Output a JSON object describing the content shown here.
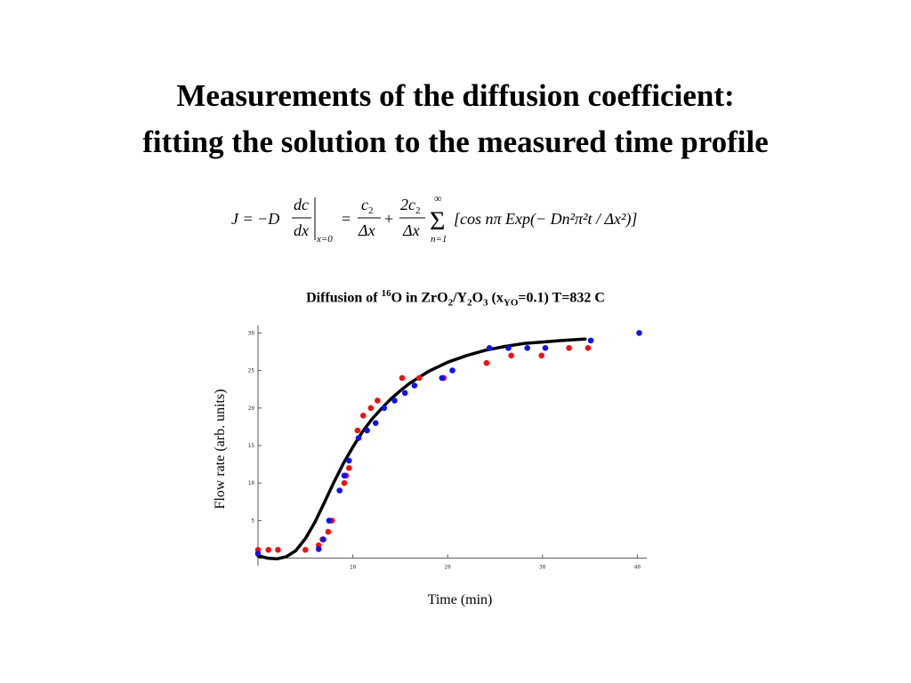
{
  "slide": {
    "title_line1": "Measurements of the diffusion coefficient:",
    "title_line2": "fitting the solution to the measured time profile"
  },
  "formula": {
    "lhs": "J = −D",
    "dc": "dc",
    "dx": "dx",
    "eval_at": "x=0",
    "eq": "=",
    "c2_num": "c",
    "c2_sub": "2",
    "dx1": "Δx",
    "plus": "+",
    "two_c2_num": "2c",
    "two_c2_sub": "2",
    "dx2": "Δx",
    "sum_top": "∞",
    "sum": "Σ",
    "sum_bottom": "n=1",
    "body": "[cos nπ Exp(− Dn²π²t / Δx²)]"
  },
  "chart_data": {
    "type": "scatter",
    "title_prefix": "Diffusion of ",
    "title_sup": "16",
    "title_main": "O in ZrO",
    "title_sub1": "2",
    "title_mid": "/Y",
    "title_sub2": "2",
    "title_mid2": "O",
    "title_sub3": "3",
    "title_mid3": " (x",
    "title_sub4": "YO",
    "title_end": "=0.1) T=832 C",
    "xlabel": "Time (min)",
    "ylabel": "Flow rate (arb. units)",
    "xlim": [
      0,
      41
    ],
    "ylim": [
      -1,
      31
    ],
    "x_ticks": [
      {
        "value": 10,
        "label": "10"
      },
      {
        "value": 20,
        "label": "20"
      },
      {
        "value": 30,
        "label": "30"
      },
      {
        "value": 40,
        "label": "40"
      }
    ],
    "y_ticks": [
      {
        "value": 5,
        "label": "5"
      },
      {
        "value": 10,
        "label": "10"
      },
      {
        "value": 15,
        "label": "15"
      },
      {
        "value": 20,
        "label": "20"
      },
      {
        "value": 25,
        "label": "25"
      },
      {
        "value": 30,
        "label": "30"
      }
    ],
    "series": [
      {
        "color": "#ee1111",
        "points": [
          [
            0.0,
            1.1
          ],
          [
            1.1,
            1.1
          ],
          [
            2.1,
            1.1
          ],
          [
            5.0,
            1.1
          ],
          [
            6.4,
            1.7
          ],
          [
            6.8,
            2.5
          ],
          [
            7.4,
            3.5
          ],
          [
            7.8,
            5.0
          ],
          [
            9.1,
            10.0
          ],
          [
            9.3,
            11.0
          ],
          [
            9.6,
            12.0
          ],
          [
            10.5,
            17.0
          ],
          [
            11.1,
            19.0
          ],
          [
            11.9,
            20.0
          ],
          [
            12.6,
            21.0
          ],
          [
            15.2,
            24.0
          ],
          [
            17.0,
            24.0
          ],
          [
            19.6,
            24.0
          ],
          [
            24.1,
            26.0
          ],
          [
            26.7,
            27.0
          ],
          [
            29.9,
            27.0
          ],
          [
            32.8,
            28.0
          ],
          [
            34.8,
            28.0
          ]
        ]
      },
      {
        "color": "#1111ee",
        "points": [
          [
            0.0,
            0.6
          ],
          [
            6.4,
            1.2
          ],
          [
            6.9,
            2.5
          ],
          [
            7.5,
            5.0
          ],
          [
            8.6,
            9.0
          ],
          [
            9.1,
            11.0
          ],
          [
            9.6,
            13.0
          ],
          [
            10.6,
            16.0
          ],
          [
            11.5,
            17.0
          ],
          [
            12.4,
            18.0
          ],
          [
            13.3,
            20.0
          ],
          [
            14.4,
            21.0
          ],
          [
            15.5,
            22.0
          ],
          [
            16.5,
            23.0
          ],
          [
            19.4,
            24.0
          ],
          [
            20.5,
            25.0
          ],
          [
            24.4,
            28.0
          ],
          [
            26.4,
            28.0
          ],
          [
            28.4,
            28.0
          ],
          [
            30.3,
            28.0
          ],
          [
            35.1,
            29.0
          ],
          [
            40.2,
            30.0
          ]
        ]
      }
    ],
    "fit": {
      "color": "#000000",
      "points": [
        [
          0.0,
          0.3
        ],
        [
          1.0,
          0.0
        ],
        [
          2.0,
          -0.1
        ],
        [
          3.0,
          0.2
        ],
        [
          4.0,
          1.0
        ],
        [
          5.0,
          2.6
        ],
        [
          6.0,
          4.8
        ],
        [
          7.0,
          7.4
        ],
        [
          8.0,
          10.1
        ],
        [
          9.0,
          12.6
        ],
        [
          10.0,
          14.8
        ],
        [
          11.0,
          16.8
        ],
        [
          12.0,
          18.5
        ],
        [
          13.0,
          19.9
        ],
        [
          14.0,
          21.2
        ],
        [
          15.0,
          22.3
        ],
        [
          16.0,
          23.3
        ],
        [
          17.0,
          24.1
        ],
        [
          18.0,
          24.9
        ],
        [
          19.0,
          25.5
        ],
        [
          20.0,
          26.1
        ],
        [
          22.0,
          27.0
        ],
        [
          24.0,
          27.7
        ],
        [
          26.0,
          28.2
        ],
        [
          28.0,
          28.6
        ],
        [
          30.0,
          28.8
        ],
        [
          32.0,
          29.0
        ],
        [
          34.5,
          29.2
        ]
      ]
    }
  }
}
